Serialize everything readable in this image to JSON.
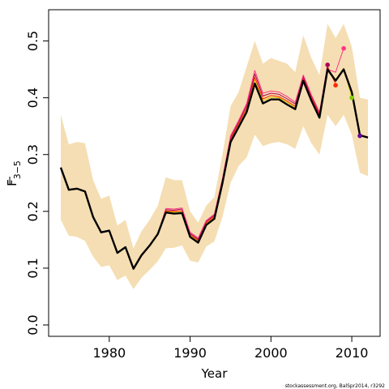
{
  "chart_data": {
    "type": "line",
    "xlabel": "Year",
    "ylabel_main": "F",
    "ylabel_sub": "3−5",
    "credit": "stockassessment.org, BalSpr2014, r3292",
    "xlim": [
      1972.5,
      2013.5
    ],
    "ylim": [
      -0.02,
      0.555
    ],
    "x_ticks": [
      1980,
      1990,
      2000,
      2010
    ],
    "y_ticks": [
      0.0,
      0.1,
      0.2,
      0.3,
      0.4,
      0.5
    ],
    "band_color": "#f5deb3",
    "band": {
      "x": [
        1974,
        1975,
        1976,
        1977,
        1978,
        1979,
        1980,
        1981,
        1982,
        1983,
        1984,
        1985,
        1986,
        1987,
        1988,
        1989,
        1990,
        1991,
        1992,
        1993,
        1994,
        1995,
        1996,
        1997,
        1998,
        1999,
        2000,
        2001,
        2002,
        2003,
        2004,
        2005,
        2006,
        2007,
        2008,
        2009,
        2010,
        2011,
        2012
      ],
      "lower": [
        0.185,
        0.157,
        0.155,
        0.148,
        0.12,
        0.102,
        0.105,
        0.079,
        0.087,
        0.063,
        0.083,
        0.097,
        0.112,
        0.135,
        0.136,
        0.14,
        0.113,
        0.11,
        0.138,
        0.147,
        0.19,
        0.25,
        0.28,
        0.295,
        0.335,
        0.315,
        0.32,
        0.322,
        0.318,
        0.31,
        0.35,
        0.32,
        0.3,
        0.37,
        0.35,
        0.37,
        0.335,
        0.268,
        0.262
      ],
      "upper": [
        0.37,
        0.318,
        0.322,
        0.32,
        0.255,
        0.222,
        0.228,
        0.175,
        0.185,
        0.135,
        0.165,
        0.185,
        0.21,
        0.26,
        0.255,
        0.255,
        0.2,
        0.18,
        0.21,
        0.225,
        0.3,
        0.385,
        0.41,
        0.455,
        0.5,
        0.46,
        0.47,
        0.465,
        0.46,
        0.445,
        0.51,
        0.47,
        0.44,
        0.53,
        0.505,
        0.53,
        0.49,
        0.4,
        0.397
      ]
    },
    "series": [
      {
        "values": [
          0.277,
          0.238,
          0.24,
          0.235,
          0.19,
          0.163,
          0.166,
          0.127,
          0.137,
          0.099,
          0.123,
          0.14,
          0.16,
          0.198,
          0.196,
          0.197,
          0.155,
          0.145,
          0.176,
          0.187,
          0.25,
          0.322,
          0.348,
          0.375,
          0.425,
          0.39,
          0.397,
          0.397,
          0.388,
          0.38,
          0.43,
          0.395,
          0.365,
          0.45,
          0.43,
          0.45,
          0.41,
          0.334,
          0.33
        ],
        "color": "#000000",
        "width": 2.4,
        "start": 1974
      },
      {
        "values": [
          0.277,
          0.238,
          0.24,
          0.235,
          0.19,
          0.163,
          0.166,
          0.127,
          0.137,
          0.099,
          0.123,
          0.14,
          0.16,
          0.2,
          0.199,
          0.2,
          0.158,
          0.148,
          0.179,
          0.19,
          0.253,
          0.325,
          0.352,
          0.38,
          0.432,
          0.395,
          0.401,
          0.4,
          0.392,
          0.383,
          0.433,
          0.398,
          0.368,
          0.452,
          0.432,
          0.452,
          0.4
        ],
        "color": "#d4c800",
        "width": 1,
        "start": 1974
      },
      {
        "values": [
          0.277,
          0.238,
          0.24,
          0.235,
          0.19,
          0.163,
          0.166,
          0.127,
          0.137,
          0.099,
          0.123,
          0.14,
          0.16,
          0.201,
          0.2,
          0.201,
          0.159,
          0.149,
          0.18,
          0.191,
          0.254,
          0.327,
          0.354,
          0.382,
          0.436,
          0.398,
          0.404,
          0.402,
          0.394,
          0.385,
          0.435,
          0.4,
          0.37,
          0.455,
          0.424
        ],
        "color": "#ff2a00",
        "width": 1,
        "start": 1974
      },
      {
        "values": [
          0.277,
          0.238,
          0.24,
          0.235,
          0.19,
          0.163,
          0.166,
          0.127,
          0.137,
          0.099,
          0.123,
          0.14,
          0.16,
          0.203,
          0.202,
          0.204,
          0.161,
          0.151,
          0.182,
          0.193,
          0.256,
          0.33,
          0.357,
          0.386,
          0.442,
          0.403,
          0.408,
          0.406,
          0.398,
          0.389,
          0.438,
          0.403,
          0.373,
          0.458
        ],
        "color": "#aa0055",
        "width": 1,
        "start": 1974
      },
      {
        "values": [
          0.277,
          0.238,
          0.24,
          0.235,
          0.19,
          0.163,
          0.166,
          0.127,
          0.137,
          0.099,
          0.123,
          0.14,
          0.16,
          0.205,
          0.204,
          0.206,
          0.163,
          0.153,
          0.184,
          0.195,
          0.258,
          0.333,
          0.36,
          0.39,
          0.448,
          0.408,
          0.412,
          0.41,
          0.402,
          0.392,
          0.44,
          0.405,
          0.375,
          0.45,
          0.445,
          0.487
        ],
        "color": "#ff3385",
        "width": 1,
        "start": 1974
      },
      {
        "values": [
          0.277,
          0.238,
          0.24,
          0.235,
          0.19,
          0.163,
          0.166,
          0.127,
          0.137,
          0.099,
          0.123,
          0.14,
          0.16,
          0.198,
          0.196,
          0.197,
          0.155,
          0.145,
          0.176,
          0.187,
          0.25,
          0.322,
          0.348,
          0.375,
          0.425,
          0.39,
          0.397,
          0.397,
          0.388,
          0.38,
          0.43,
          0.395,
          0.365,
          0.45,
          0.43,
          0.45,
          0.41,
          0.334
        ],
        "color": "#660099",
        "width": 1.4,
        "start": 1974
      }
    ],
    "markers": [
      {
        "x": 2007,
        "y": 0.458,
        "color": "#aa0055"
      },
      {
        "x": 2008,
        "y": 0.422,
        "color": "#ff2a00"
      },
      {
        "x": 2009,
        "y": 0.487,
        "color": "#ff3385"
      },
      {
        "x": 2010,
        "y": 0.4,
        "color": "#7fcc00"
      },
      {
        "x": 2011,
        "y": 0.333,
        "color": "#660099"
      }
    ]
  }
}
